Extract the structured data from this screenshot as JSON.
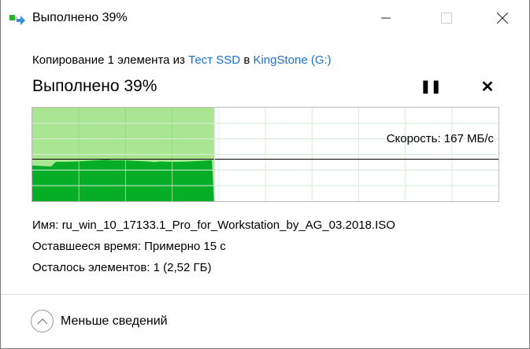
{
  "window": {
    "title": "Выполнено 39%",
    "icon": "file-copy-icon"
  },
  "header": {
    "prefix": "Копирование 1 элемента из",
    "source": "Тест SSD",
    "mid": "в",
    "destination": "KingStone (G:)"
  },
  "status": {
    "heading": "Выполнено 39%",
    "progress_percent": 39
  },
  "graph": {
    "speed_label": "Скорость: 167 МБ/с",
    "speed_level_fraction": 0.45,
    "colors": {
      "done_light": "#aae592",
      "throughput": "#06ad27",
      "grid": "#d6ecd9"
    }
  },
  "details": [
    {
      "label": "Имя:",
      "value": "ru_win_10_17133.1_Pro_for_Workstation_by_AG_03.2018.ISO"
    },
    {
      "label": "Оставшееся время:",
      "value": "Примерно 15 с"
    },
    {
      "label": "Осталось элементов:",
      "value": "1 (2,52 ГБ)"
    }
  ],
  "footer": {
    "toggle_label": "Меньше сведений"
  }
}
